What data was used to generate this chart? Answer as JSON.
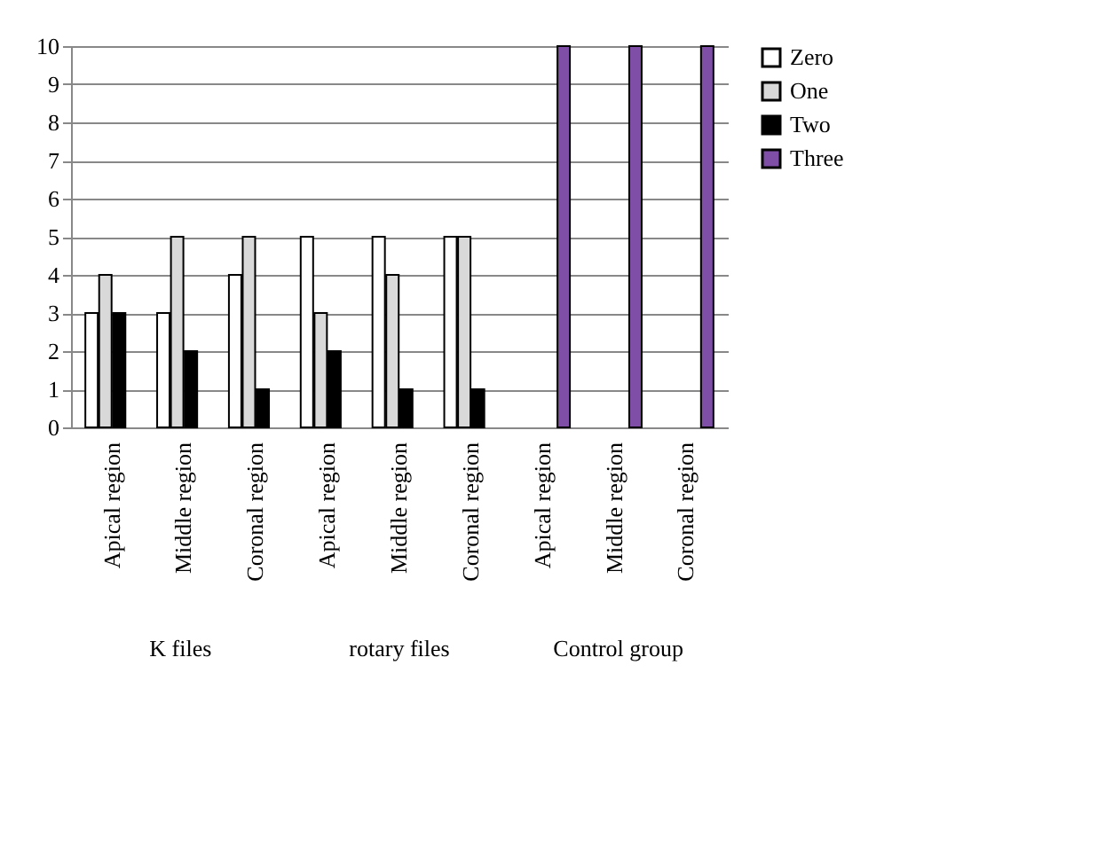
{
  "chart_data": {
    "type": "bar",
    "categories": [
      "Apical region",
      "Middle region",
      "Coronal region",
      "Apical region",
      "Middle region",
      "Coronal region",
      "Apical region",
      "Middle region",
      "Coronal region"
    ],
    "series": [
      {
        "name": "Zero",
        "color": "#ffffff",
        "values": [
          3,
          3,
          4,
          5,
          5,
          5,
          0,
          0,
          0
        ]
      },
      {
        "name": "One",
        "color": "#d9d9d9",
        "values": [
          4,
          5,
          5,
          3,
          4,
          5,
          0,
          0,
          0
        ]
      },
      {
        "name": "Two",
        "color": "#000000",
        "values": [
          3,
          2,
          1,
          2,
          1,
          1,
          0,
          0,
          0
        ]
      },
      {
        "name": "Three",
        "color": "#7f4fa8",
        "values": [
          0,
          0,
          0,
          0,
          0,
          0,
          10,
          10,
          10
        ]
      }
    ],
    "ylim": [
      0,
      10
    ],
    "yticks": [
      0,
      1,
      2,
      3,
      4,
      5,
      6,
      7,
      8,
      9,
      10
    ],
    "grid": "y",
    "legend": "right",
    "annotations": [
      "K files",
      "rotary files",
      "Control group"
    ]
  }
}
